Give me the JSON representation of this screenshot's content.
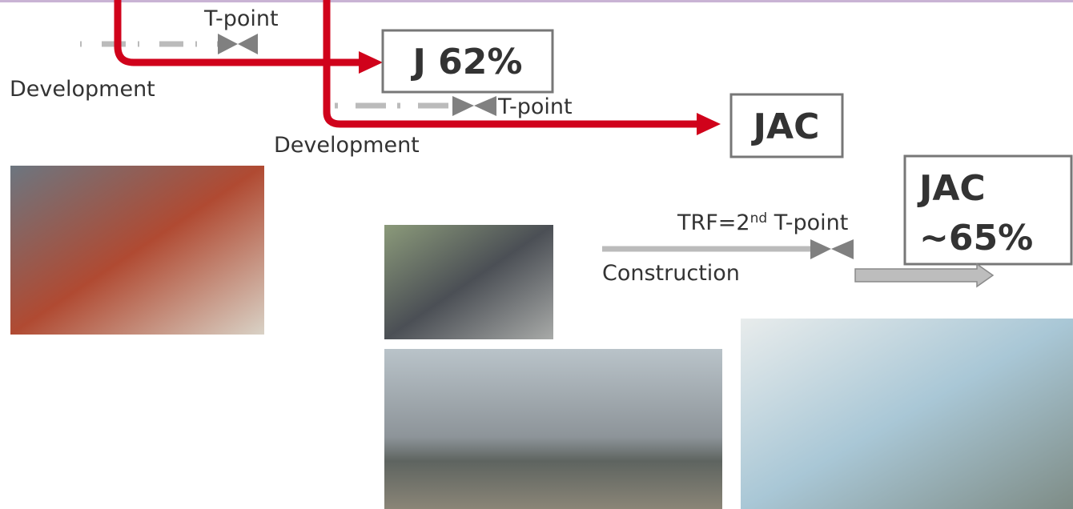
{
  "labels": {
    "tpoint_1": "T-point",
    "development_1": "Development",
    "box_1": "J 62%",
    "tpoint_2": "T-point",
    "development_2": "Development",
    "box_2": "JAC",
    "trf": {
      "prefix": "TRF=2",
      "sup": "nd",
      "suffix": " T-point"
    },
    "construction": "Construction",
    "box_3": [
      "JAC",
      "~65%"
    ]
  }
}
